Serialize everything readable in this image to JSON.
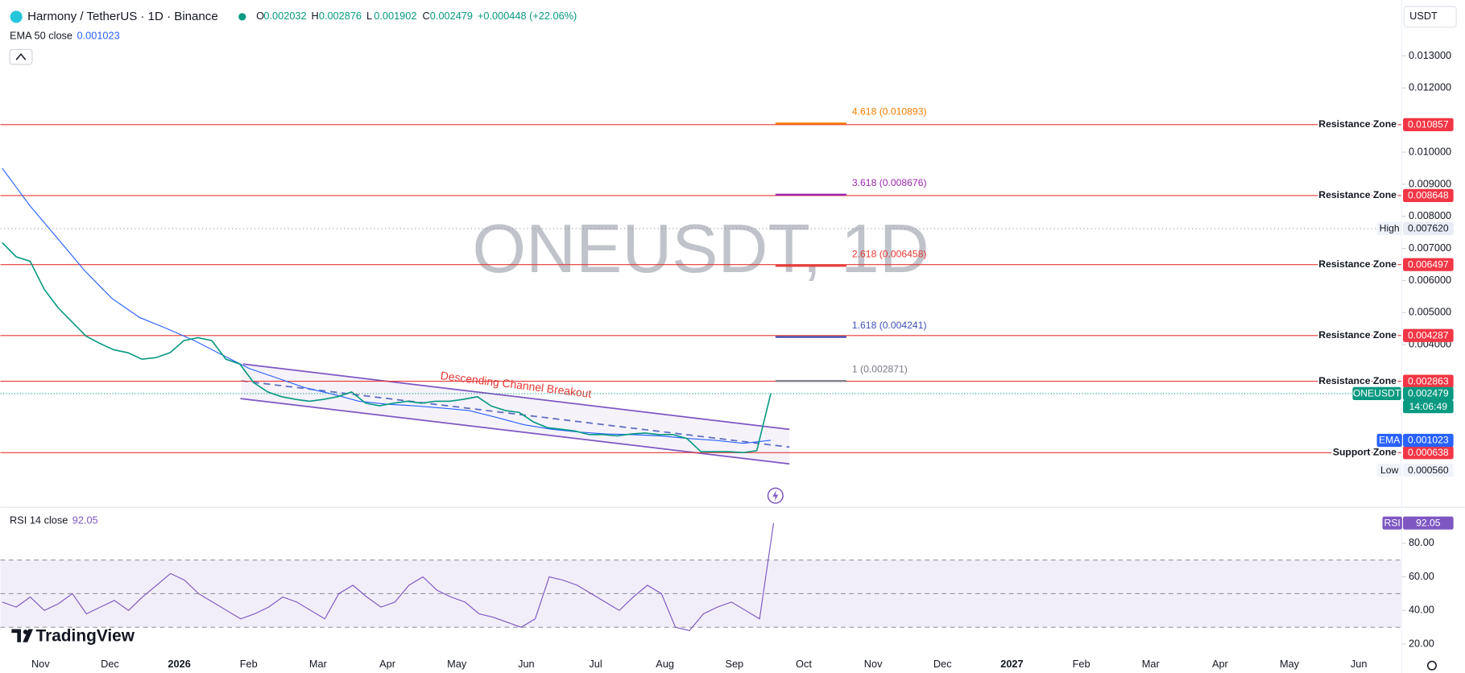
{
  "header": {
    "symbol": "Harmony / TetherUS · 1D · Binance",
    "ohlc": [
      {
        "label": "O",
        "value": "0.002032"
      },
      {
        "label": "H",
        "value": "0.002876"
      },
      {
        "label": "L",
        "value": "0.001902"
      },
      {
        "label": "C",
        "value": "0.002479"
      }
    ],
    "change": "+0.000448 (+22.06%)",
    "currency": "USDT"
  },
  "watermark": "ONEUSDT, 1D",
  "annotation": "Descending Channel Breakout",
  "brand": "TradingView",
  "time_axis": [
    "Nov",
    "Dec",
    "2026",
    "Feb",
    "Mar",
    "Apr",
    "May",
    "Jun",
    "Jul",
    "Aug",
    "Sep",
    "Oct",
    "Nov",
    "Dec",
    "2027",
    "Feb",
    "Mar",
    "Apr",
    "May",
    "Jun"
  ],
  "chart_data": [
    {
      "type": "line",
      "series": [
        {
          "name": "ONEUSDT",
          "color": "#089981",
          "values": [
            0.00718,
            0.00674,
            0.0066,
            0.00573,
            0.00515,
            0.00471,
            0.00427,
            0.00404,
            0.00384,
            0.00375,
            0.00355,
            0.0036,
            0.00375,
            0.00413,
            0.00422,
            0.00413,
            0.00355,
            0.0034,
            0.00282,
            0.00253,
            0.00238,
            0.0023,
            0.00224,
            0.0023,
            0.00238,
            0.00253,
            0.00218,
            0.0021,
            0.00218,
            0.00224,
            0.00218,
            0.00224,
            0.00224,
            0.0023,
            0.00238,
            0.00209,
            0.00195,
            0.00189,
            0.0016,
            0.00142,
            0.00137,
            0.00131,
            0.0012,
            0.0012,
            0.00116,
            0.00122,
            0.00125,
            0.0012,
            0.0012,
            0.00108,
            0.00067,
            0.00067,
            0.00067,
            0.00064,
            0.0007,
            0.002479
          ]
        },
        {
          "name": "EMA 50 close",
          "color": "#2962ff",
          "values": [
            0.0095,
            0.00834,
            0.00733,
            0.00631,
            0.00544,
            0.00485,
            0.0045,
            0.00413,
            0.00369,
            0.00326,
            0.00297,
            0.00267,
            0.00247,
            0.00224,
            0.00215,
            0.0021,
            0.00203,
            0.00195,
            0.00174,
            0.00151,
            0.00137,
            0.00128,
            0.00122,
            0.0012,
            0.00116,
            0.00108,
            0.00102,
            0.00093,
            0.001023
          ]
        }
      ],
      "ema_badge_label": "EMA",
      "countdown": "14:06:49",
      "ylim": [
        -0.00105,
        0.01474
      ],
      "yticks": [
        {
          "value": 0.013,
          "label": "0.013000"
        },
        {
          "value": 0.012,
          "label": "0.012000"
        },
        {
          "value": 0.01,
          "label": "0.010000"
        },
        {
          "value": 0.009,
          "label": "0.009000"
        },
        {
          "value": 0.008,
          "label": "0.008000"
        },
        {
          "value": 0.007,
          "label": "0.007000"
        },
        {
          "value": 0.006,
          "label": "0.006000"
        },
        {
          "value": 0.005,
          "label": "0.005000"
        },
        {
          "value": 0.004,
          "label": "0.004000"
        }
      ],
      "high": {
        "label": "High",
        "value": 0.00762,
        "value_label": "0.007620"
      },
      "low": {
        "label": "Low",
        "value": 0.00056,
        "value_label": "0.000560"
      },
      "zones": [
        {
          "label": "Resistance Zone",
          "value": 0.010857
        },
        {
          "label": "Resistance Zone",
          "value": 0.008648
        },
        {
          "label": "Resistance Zone",
          "value": 0.006497
        },
        {
          "label": "Resistance Zone",
          "value": 0.004287
        },
        {
          "label": "Resistance Zone",
          "value": 0.002863
        },
        {
          "label": "Support Zone",
          "value": 0.000638
        }
      ],
      "fib_levels": [
        {
          "label": "4.618 (0.010893)",
          "value": 0.010893,
          "color": "#f57c00"
        },
        {
          "label": "3.618 (0.008676)",
          "value": 0.008676,
          "color": "#9c27b0"
        },
        {
          "label": "2.618 (0.006458)",
          "value": 0.006458,
          "color": "#e53935"
        },
        {
          "label": "1.618 (0.004241)",
          "value": 0.004241,
          "color": "#3f51b5"
        },
        {
          "label": "1 (0.002871)",
          "value": 0.002871,
          "color": "#787b86"
        }
      ]
    },
    {
      "type": "line",
      "series": [
        {
          "name": "RSI 14 close",
          "color": "#7e57c2",
          "values": [
            45,
            42,
            48,
            40,
            44,
            50,
            38,
            42,
            46,
            40,
            48,
            55,
            62,
            58,
            50,
            45,
            40,
            35,
            38,
            42,
            48,
            45,
            40,
            35,
            50,
            55,
            48,
            42,
            45,
            55,
            60,
            52,
            48,
            45,
            38,
            36,
            33,
            30,
            35,
            60,
            58,
            55,
            50,
            45,
            40,
            48,
            55,
            50,
            30,
            28,
            38,
            42,
            45,
            40,
            35,
            92.05
          ]
        }
      ],
      "badge_label": "RSI",
      "ylim": [
        14.44,
        100.56
      ],
      "yticks": [
        {
          "value": 80,
          "label": "80.00"
        },
        {
          "value": 60,
          "label": "60.00"
        },
        {
          "value": 40,
          "label": "40.00"
        },
        {
          "value": 20,
          "label": "20.00"
        }
      ],
      "bands": [
        30,
        50,
        70
      ]
    }
  ]
}
